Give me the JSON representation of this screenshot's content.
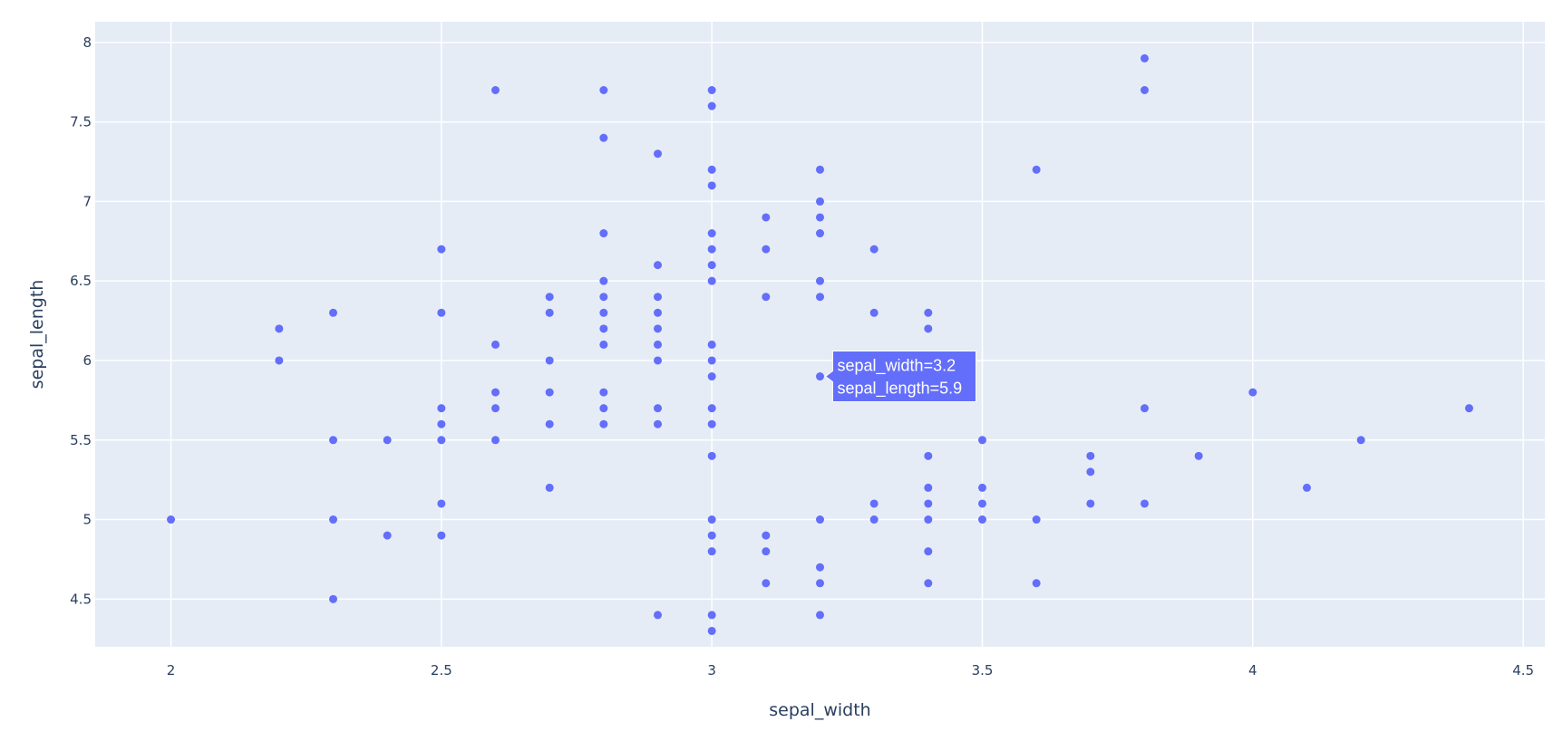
{
  "colors": {
    "plot_bg": "#e5ecf6",
    "grid": "#ffffff",
    "marker": "#636efa",
    "text": "#2a3f5f",
    "hover_bg": "#636efa",
    "hover_border": "#ffffff",
    "hover_text": "#ffffff"
  },
  "chart_data": {
    "type": "scatter",
    "xlabel": "sepal_width",
    "ylabel": "sepal_length",
    "xlim": [
      1.86,
      4.54
    ],
    "ylim": [
      4.2,
      8.13
    ],
    "grid": true,
    "x_ticks": [
      {
        "value": 2,
        "label": "2"
      },
      {
        "value": 2.5,
        "label": "2.5"
      },
      {
        "value": 3,
        "label": "3"
      },
      {
        "value": 3.5,
        "label": "3.5"
      },
      {
        "value": 4,
        "label": "4"
      },
      {
        "value": 4.5,
        "label": "4.5"
      }
    ],
    "y_ticks": [
      {
        "value": 4.5,
        "label": "4.5"
      },
      {
        "value": 5,
        "label": "5"
      },
      {
        "value": 5.5,
        "label": "5.5"
      },
      {
        "value": 6,
        "label": "6"
      },
      {
        "value": 6.5,
        "label": "6.5"
      },
      {
        "value": 7,
        "label": "7"
      },
      {
        "value": 7.5,
        "label": "7.5"
      },
      {
        "value": 8,
        "label": "8"
      }
    ],
    "points": [
      [
        2.0,
        5.0
      ],
      [
        2.2,
        6.2
      ],
      [
        2.2,
        6.0
      ],
      [
        2.3,
        6.3
      ],
      [
        2.3,
        5.5
      ],
      [
        2.3,
        5.0
      ],
      [
        2.3,
        4.5
      ],
      [
        2.4,
        5.5
      ],
      [
        2.4,
        4.9
      ],
      [
        2.5,
        6.7
      ],
      [
        2.5,
        6.3
      ],
      [
        2.5,
        5.7
      ],
      [
        2.5,
        5.6
      ],
      [
        2.5,
        5.5
      ],
      [
        2.5,
        5.1
      ],
      [
        2.5,
        4.9
      ],
      [
        2.6,
        7.7
      ],
      [
        2.6,
        6.1
      ],
      [
        2.6,
        5.8
      ],
      [
        2.6,
        5.7
      ],
      [
        2.6,
        5.5
      ],
      [
        2.7,
        6.4
      ],
      [
        2.7,
        6.3
      ],
      [
        2.7,
        6.0
      ],
      [
        2.7,
        5.8
      ],
      [
        2.7,
        5.6
      ],
      [
        2.7,
        5.2
      ],
      [
        2.8,
        7.7
      ],
      [
        2.8,
        7.4
      ],
      [
        2.8,
        6.8
      ],
      [
        2.8,
        6.5
      ],
      [
        2.8,
        6.4
      ],
      [
        2.8,
        6.3
      ],
      [
        2.8,
        6.2
      ],
      [
        2.8,
        6.1
      ],
      [
        2.8,
        5.8
      ],
      [
        2.8,
        5.7
      ],
      [
        2.8,
        5.6
      ],
      [
        2.9,
        7.3
      ],
      [
        2.9,
        6.6
      ],
      [
        2.9,
        6.4
      ],
      [
        2.9,
        6.3
      ],
      [
        2.9,
        6.2
      ],
      [
        2.9,
        6.1
      ],
      [
        2.9,
        6.0
      ],
      [
        2.9,
        5.7
      ],
      [
        2.9,
        5.6
      ],
      [
        2.9,
        4.4
      ],
      [
        3.0,
        7.7
      ],
      [
        3.0,
        7.6
      ],
      [
        3.0,
        7.2
      ],
      [
        3.0,
        7.1
      ],
      [
        3.0,
        6.8
      ],
      [
        3.0,
        6.7
      ],
      [
        3.0,
        6.6
      ],
      [
        3.0,
        6.5
      ],
      [
        3.0,
        6.1
      ],
      [
        3.0,
        6.0
      ],
      [
        3.0,
        5.9
      ],
      [
        3.0,
        5.7
      ],
      [
        3.0,
        5.6
      ],
      [
        3.0,
        5.4
      ],
      [
        3.0,
        5.0
      ],
      [
        3.0,
        4.9
      ],
      [
        3.0,
        4.8
      ],
      [
        3.0,
        4.4
      ],
      [
        3.0,
        4.3
      ],
      [
        3.1,
        6.9
      ],
      [
        3.1,
        6.7
      ],
      [
        3.1,
        6.4
      ],
      [
        3.1,
        4.9
      ],
      [
        3.1,
        4.8
      ],
      [
        3.1,
        4.6
      ],
      [
        3.2,
        7.2
      ],
      [
        3.2,
        7.0
      ],
      [
        3.2,
        6.9
      ],
      [
        3.2,
        6.8
      ],
      [
        3.2,
        6.5
      ],
      [
        3.2,
        6.4
      ],
      [
        3.2,
        5.9
      ],
      [
        3.2,
        5.0
      ],
      [
        3.2,
        4.7
      ],
      [
        3.2,
        4.6
      ],
      [
        3.2,
        4.4
      ],
      [
        3.3,
        6.7
      ],
      [
        3.3,
        6.3
      ],
      [
        3.3,
        5.1
      ],
      [
        3.3,
        5.0
      ],
      [
        3.4,
        6.3
      ],
      [
        3.4,
        6.2
      ],
      [
        3.4,
        5.4
      ],
      [
        3.4,
        5.2
      ],
      [
        3.4,
        5.1
      ],
      [
        3.4,
        5.0
      ],
      [
        3.4,
        4.8
      ],
      [
        3.4,
        4.6
      ],
      [
        3.5,
        5.5
      ],
      [
        3.5,
        5.2
      ],
      [
        3.5,
        5.1
      ],
      [
        3.5,
        5.0
      ],
      [
        3.6,
        7.2
      ],
      [
        3.6,
        5.0
      ],
      [
        3.6,
        4.6
      ],
      [
        3.7,
        5.4
      ],
      [
        3.7,
        5.3
      ],
      [
        3.7,
        5.1
      ],
      [
        3.8,
        7.9
      ],
      [
        3.8,
        7.7
      ],
      [
        3.8,
        5.7
      ],
      [
        3.8,
        5.1
      ],
      [
        3.9,
        5.4
      ],
      [
        4.0,
        5.8
      ],
      [
        4.1,
        5.2
      ],
      [
        4.2,
        5.5
      ],
      [
        4.4,
        5.7
      ]
    ],
    "hover": {
      "x": 3.2,
      "y": 5.9,
      "line1": "sepal_width=3.2",
      "line2": "sepal_length=5.9"
    }
  }
}
